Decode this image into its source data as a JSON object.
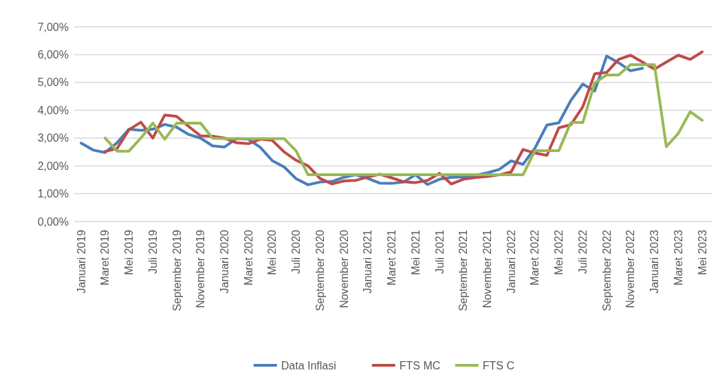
{
  "chart_data": {
    "type": "line",
    "categories": [
      "Januari 2019",
      null,
      "Maret 2019",
      null,
      "Mei 2019",
      null,
      "Juli 2019",
      null,
      "September 2019",
      null,
      "November 2019",
      null,
      "Januari 2020",
      null,
      "Maret 2020",
      null,
      "Mei 2020",
      null,
      "Juli 2020",
      null,
      "September 2020",
      null,
      "November 2020",
      null,
      "Januari 2021",
      null,
      "Maret 2021",
      null,
      "Mei 2021",
      null,
      "Juli 2021",
      null,
      "September 2021",
      null,
      "November 2021",
      null,
      "Januari 2022",
      null,
      "Maret 2022",
      null,
      "Mei 2022",
      null,
      "Juli 2022",
      null,
      "September 2022",
      null,
      "November 2022",
      null,
      "Januari 2023",
      null,
      "Maret 2023",
      null,
      "Mei 2023"
    ],
    "series": [
      {
        "name": "Data Inflasi",
        "color": "#4a7ebb",
        "values": [
          2.82,
          2.57,
          2.48,
          2.83,
          3.32,
          3.28,
          3.32,
          3.49,
          3.39,
          3.13,
          3.0,
          2.72,
          2.68,
          2.98,
          2.96,
          2.67,
          2.19,
          1.96,
          1.54,
          1.32,
          1.42,
          1.44,
          1.59,
          1.68,
          1.55,
          1.38,
          1.37,
          1.42,
          1.68,
          1.33,
          1.52,
          1.59,
          1.6,
          1.66,
          1.75,
          1.87,
          2.18,
          2.06,
          2.64,
          3.47,
          3.55,
          4.35,
          4.94,
          4.69,
          5.95,
          5.71,
          5.42,
          5.51,
          null,
          null,
          null,
          null,
          null
        ]
      },
      {
        "name": "FTS MC",
        "color": "#be4b48",
        "values": [
          null,
          null,
          2.52,
          2.62,
          3.3,
          3.57,
          3.0,
          3.83,
          3.78,
          3.42,
          3.08,
          3.07,
          3.0,
          2.83,
          2.8,
          2.96,
          2.92,
          2.5,
          2.2,
          2.0,
          1.55,
          1.35,
          1.46,
          1.48,
          1.6,
          1.7,
          1.57,
          1.43,
          1.4,
          1.48,
          1.73,
          1.35,
          1.52,
          1.58,
          1.62,
          1.68,
          1.78,
          2.59,
          2.46,
          2.38,
          3.37,
          3.48,
          4.12,
          5.31,
          5.36,
          5.83,
          5.98,
          5.73,
          5.48,
          5.73,
          5.98,
          5.83,
          6.1
        ]
      },
      {
        "name": "FTS C",
        "color": "#98b954",
        "values": [
          null,
          null,
          3.0,
          2.53,
          2.53,
          3.0,
          3.54,
          2.96,
          3.54,
          3.54,
          3.54,
          3.0,
          2.98,
          2.98,
          2.98,
          2.98,
          2.98,
          2.98,
          2.54,
          1.68,
          1.68,
          1.68,
          1.68,
          1.68,
          1.68,
          1.68,
          1.68,
          1.68,
          1.68,
          1.68,
          1.68,
          1.68,
          1.68,
          1.68,
          1.68,
          1.68,
          1.68,
          1.68,
          2.55,
          2.55,
          2.55,
          3.56,
          3.56,
          4.98,
          5.27,
          5.27,
          5.64,
          5.64,
          5.64,
          2.69,
          3.17,
          3.95,
          3.64
        ]
      }
    ],
    "ylim": [
      0,
      7
    ],
    "yticks": [
      {
        "value": 0,
        "label": "0,00%"
      },
      {
        "value": 1,
        "label": "1,00%"
      },
      {
        "value": 2,
        "label": "2,00%"
      },
      {
        "value": 3,
        "label": "3,00%"
      },
      {
        "value": 4,
        "label": "4,00%"
      },
      {
        "value": 5,
        "label": "5,00%"
      },
      {
        "value": 6,
        "label": "6,00%"
      },
      {
        "value": 7,
        "label": "7,00%"
      }
    ],
    "grid": "y",
    "legend": "bottom",
    "marker": "none",
    "line_style": "solid"
  }
}
